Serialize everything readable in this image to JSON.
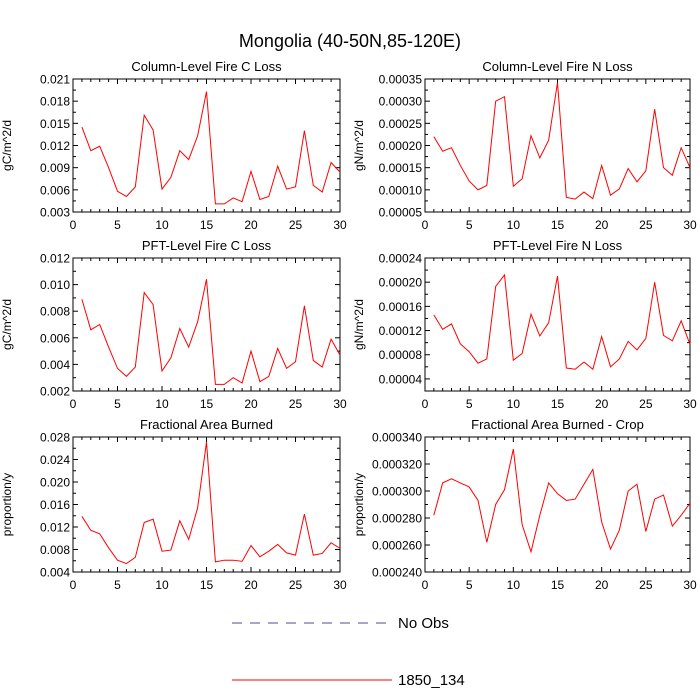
{
  "title": "Mongolia (40-50N,85-120E)",
  "legend": {
    "placement": "bottom-center",
    "entries": [
      {
        "label": "No Obs",
        "style": "dashed",
        "color": "#4d4d8f"
      },
      {
        "label": "1850_134",
        "style": "solid",
        "color": "#ff0000"
      }
    ]
  },
  "chart_data": [
    {
      "type": "line",
      "title": "Column-Level Fire C Loss",
      "ylabel": "gC/m^2/d",
      "xlim": [
        0,
        30
      ],
      "ylim": [
        0.003,
        0.021
      ],
      "xticks": [
        0,
        5,
        10,
        15,
        20,
        25,
        30
      ],
      "yticks": [
        "0.003",
        "0.006",
        "0.009",
        "0.012",
        "0.015",
        "0.018",
        "0.021"
      ],
      "series": [
        {
          "name": "1850_134",
          "color": "#ff0000",
          "x": [
            1,
            2,
            3,
            4,
            5,
            6,
            7,
            8,
            9,
            10,
            11,
            12,
            13,
            14,
            15,
            16,
            17,
            18,
            19,
            20,
            21,
            22,
            23,
            24,
            25,
            26,
            27,
            28,
            29,
            30
          ],
          "values": [
            0.0145,
            0.0113,
            0.0119,
            0.009,
            0.0058,
            0.0051,
            0.0064,
            0.0161,
            0.0141,
            0.0061,
            0.0077,
            0.0113,
            0.0101,
            0.0133,
            0.0193,
            0.0041,
            0.0041,
            0.0049,
            0.0044,
            0.0085,
            0.0047,
            0.0051,
            0.0092,
            0.0061,
            0.0064,
            0.014,
            0.0066,
            0.0057,
            0.0097,
            0.0084
          ]
        }
      ]
    },
    {
      "type": "line",
      "title": "Column-Level Fire N Loss",
      "ylabel": "gN/m^2/d",
      "xlim": [
        0,
        30
      ],
      "ylim": [
        5e-05,
        0.00035
      ],
      "xticks": [
        0,
        5,
        10,
        15,
        20,
        25,
        30
      ],
      "yticks": [
        "0.00005",
        "0.00010",
        "0.00015",
        "0.00020",
        "0.00025",
        "0.00030",
        "0.00035"
      ],
      "series": [
        {
          "name": "1850_134",
          "color": "#ff0000",
          "x": [
            1,
            2,
            3,
            4,
            5,
            6,
            7,
            8,
            9,
            10,
            11,
            12,
            13,
            14,
            15,
            16,
            17,
            18,
            19,
            20,
            21,
            22,
            23,
            24,
            25,
            26,
            27,
            28,
            29,
            30
          ],
          "values": [
            0.00022,
            0.000187,
            0.000195,
            0.000155,
            0.00012,
            0.0001,
            0.00011,
            0.0003,
            0.00031,
            0.000108,
            0.000125,
            0.000222,
            0.000172,
            0.000212,
            0.000342,
            8.3e-05,
            7.9e-05,
            9.5e-05,
            8e-05,
            0.000155,
            8.8e-05,
            0.000102,
            0.000148,
            0.000118,
            0.000143,
            0.000282,
            0.00015,
            0.000133,
            0.000195,
            0.00015
          ]
        }
      ]
    },
    {
      "type": "line",
      "title": "PFT-Level Fire C Loss",
      "ylabel": "gC/m^2/d",
      "xlim": [
        0,
        30
      ],
      "ylim": [
        0.002,
        0.012
      ],
      "xticks": [
        0,
        5,
        10,
        15,
        20,
        25,
        30
      ],
      "yticks": [
        "0.002",
        "0.004",
        "0.006",
        "0.008",
        "0.010",
        "0.012"
      ],
      "series": [
        {
          "name": "1850_134",
          "color": "#ff0000",
          "x": [
            1,
            2,
            3,
            4,
            5,
            6,
            7,
            8,
            9,
            10,
            11,
            12,
            13,
            14,
            15,
            16,
            17,
            18,
            19,
            20,
            21,
            22,
            23,
            24,
            25,
            26,
            27,
            28,
            29,
            30
          ],
          "values": [
            0.0089,
            0.0066,
            0.007,
            0.0053,
            0.0037,
            0.0031,
            0.0038,
            0.0094,
            0.0085,
            0.0035,
            0.0045,
            0.0067,
            0.0053,
            0.0072,
            0.0104,
            0.0025,
            0.0025,
            0.003,
            0.0026,
            0.005,
            0.0027,
            0.0031,
            0.0052,
            0.0037,
            0.0042,
            0.0084,
            0.0043,
            0.0038,
            0.0059,
            0.0047
          ]
        }
      ]
    },
    {
      "type": "line",
      "title": "PFT-Level Fire N Loss",
      "ylabel": "gN/m^2/d",
      "xlim": [
        0,
        30
      ],
      "ylim": [
        2e-05,
        0.00024
      ],
      "xticks": [
        0,
        5,
        10,
        15,
        20,
        25,
        30
      ],
      "yticks": [
        "0.00004",
        "0.00008",
        "0.00012",
        "0.00016",
        "0.00020",
        "0.00024"
      ],
      "series": [
        {
          "name": "1850_134",
          "color": "#ff0000",
          "x": [
            1,
            2,
            3,
            4,
            5,
            6,
            7,
            8,
            9,
            10,
            11,
            12,
            13,
            14,
            15,
            16,
            17,
            18,
            19,
            20,
            21,
            22,
            23,
            24,
            25,
            26,
            27,
            28,
            29,
            30
          ],
          "values": [
            0.000146,
            0.000122,
            0.000131,
            9.8e-05,
            8.5e-05,
            6.6e-05,
            7.3e-05,
            0.000193,
            0.000212,
            7.1e-05,
            8.2e-05,
            0.000147,
            0.000111,
            0.000133,
            0.00021,
            5.8e-05,
            5.6e-05,
            6.8e-05,
            5.6e-05,
            0.00011,
            6e-05,
            7.3e-05,
            0.000102,
            8.8e-05,
            0.000107,
            0.0002,
            0.000112,
            0.000103,
            0.000136,
            9.7e-05
          ]
        }
      ]
    },
    {
      "type": "line",
      "title": "Fractional Area Burned",
      "ylabel": "proportion/y",
      "xlim": [
        0,
        30
      ],
      "ylim": [
        0.004,
        0.028
      ],
      "xticks": [
        0,
        5,
        10,
        15,
        20,
        25,
        30
      ],
      "yticks": [
        "0.004",
        "0.008",
        "0.012",
        "0.016",
        "0.020",
        "0.024",
        "0.028"
      ],
      "series": [
        {
          "name": "1850_134",
          "color": "#ff0000",
          "x": [
            1,
            2,
            3,
            4,
            5,
            6,
            7,
            8,
            9,
            10,
            11,
            12,
            13,
            14,
            15,
            16,
            17,
            18,
            19,
            20,
            21,
            22,
            23,
            24,
            25,
            26,
            27,
            28,
            29,
            30
          ],
          "values": [
            0.0139,
            0.0114,
            0.0108,
            0.0083,
            0.0061,
            0.0055,
            0.0066,
            0.0128,
            0.0134,
            0.0077,
            0.0079,
            0.0131,
            0.0098,
            0.0154,
            0.0271,
            0.0058,
            0.0061,
            0.0061,
            0.0059,
            0.0087,
            0.0067,
            0.0077,
            0.0089,
            0.0074,
            0.007,
            0.0143,
            0.007,
            0.0073,
            0.0092,
            0.0082
          ]
        }
      ]
    },
    {
      "type": "line",
      "title": "Fractional Area Burned - Crop",
      "ylabel": "proportion/y",
      "xlim": [
        0,
        30
      ],
      "ylim": [
        0.00024,
        0.00034
      ],
      "xticks": [
        0,
        5,
        10,
        15,
        20,
        25,
        30
      ],
      "yticks": [
        "0.000240",
        "0.000260",
        "0.000280",
        "0.000300",
        "0.000320",
        "0.000340"
      ],
      "series": [
        {
          "name": "1850_134",
          "color": "#ff0000",
          "x": [
            1,
            2,
            3,
            4,
            5,
            6,
            7,
            8,
            9,
            10,
            11,
            12,
            13,
            14,
            15,
            16,
            17,
            18,
            19,
            20,
            21,
            22,
            23,
            24,
            25,
            26,
            27,
            28,
            29,
            30
          ],
          "values": [
            0.000282,
            0.000306,
            0.000309,
            0.000306,
            0.000303,
            0.000293,
            0.000262,
            0.00029,
            0.000301,
            0.000331,
            0.000275,
            0.000255,
            0.000282,
            0.000306,
            0.000298,
            0.000293,
            0.000294,
            0.000305,
            0.000316,
            0.000277,
            0.000257,
            0.000271,
            0.0003,
            0.000305,
            0.00027,
            0.000294,
            0.000297,
            0.000274,
            0.000282,
            0.000291
          ]
        }
      ]
    }
  ]
}
